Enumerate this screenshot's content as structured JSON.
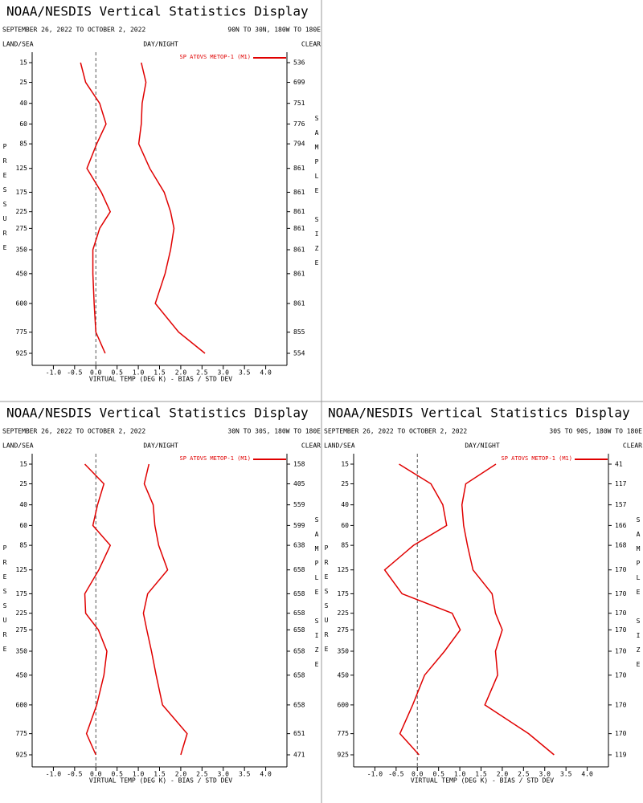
{
  "chart_data": [
    {
      "type": "line",
      "orientation": "vertical",
      "title": "NOAA/NESDIS Vertical Statistics Display",
      "period": "SEPTEMBER 26, 2022 TO OCTOBER 2, 2022",
      "region": "90N TO 30N, 180W TO 180E",
      "header_labels": [
        "LAND/SEA",
        "DAY/NIGHT",
        "CLEAR"
      ],
      "y_label": "PRESSURE",
      "y2_label": "SAMPLE SIZE",
      "x_label": "VIRTUAL TEMP (DEG K) - BIAS / STD DEV",
      "y": [
        15,
        25,
        40,
        60,
        85,
        125,
        175,
        225,
        275,
        350,
        450,
        600,
        775,
        925
      ],
      "sample_size": [
        536,
        699,
        751,
        776,
        794,
        861,
        861,
        861,
        861,
        861,
        861,
        861,
        855,
        554
      ],
      "xlim": [
        -1.5,
        4.5
      ],
      "xticks": [
        {
          "value": -1,
          "label": "-1.0"
        },
        -0.5,
        {
          "value": 0,
          "label": "0.0"
        },
        0.5,
        {
          "value": 1,
          "label": "1.0"
        },
        1.5,
        {
          "value": 2,
          "label": "2.0"
        },
        2.5,
        {
          "value": 3,
          "label": "3.0"
        },
        3.5,
        {
          "value": 4,
          "label": "4.0"
        }
      ],
      "series": [
        {
          "name": "SP ATOVS METOP-1 (M1)",
          "color": "#e00000",
          "values": [
            -0.36,
            -0.24,
            0.09,
            0.24,
            0.02,
            -0.21,
            0.13,
            0.34,
            0.09,
            -0.07,
            -0.07,
            -0.04,
            0.0,
            0.22
          ],
          "std_dev": [
            1.07,
            1.18,
            1.09,
            1.07,
            1.01,
            1.27,
            1.61,
            1.76,
            1.84,
            1.76,
            1.63,
            1.4,
            1.95,
            2.57
          ]
        }
      ]
    },
    {
      "type": "line",
      "orientation": "vertical",
      "title": "NOAA/NESDIS Vertical Statistics Display",
      "period": "SEPTEMBER 26, 2022 TO OCTOBER 2, 2022",
      "region": "30N TO 30S, 180W TO 180E",
      "header_labels": [
        "LAND/SEA",
        "DAY/NIGHT",
        "CLEAR"
      ],
      "y_label": "PRESSURE",
      "y2_label": "SAMPLE SIZE",
      "x_label": "VIRTUAL TEMP (DEG K) - BIAS / STD DEV",
      "y": [
        15,
        25,
        40,
        60,
        85,
        125,
        175,
        225,
        275,
        350,
        450,
        600,
        775,
        925
      ],
      "sample_size": [
        158,
        405,
        559,
        599,
        638,
        658,
        658,
        658,
        658,
        658,
        658,
        658,
        651,
        471
      ],
      "xlim": [
        -1.5,
        4.5
      ],
      "xticks": [
        {
          "value": -1,
          "label": "-1.0"
        },
        -0.5,
        {
          "value": 0,
          "label": "0.0"
        },
        0.5,
        {
          "value": 1,
          "label": "1.0"
        },
        1.5,
        {
          "value": 2,
          "label": "2.0"
        },
        2.5,
        {
          "value": 3,
          "label": "3.0"
        },
        3.5,
        {
          "value": 4,
          "label": "4.0"
        }
      ],
      "series": [
        {
          "name": "SP ATOVS METOP-1 (M1)",
          "color": "#e00000",
          "values": [
            -0.26,
            0.19,
            0.04,
            -0.07,
            0.34,
            0.07,
            -0.26,
            -0.24,
            0.06,
            0.26,
            0.19,
            0.02,
            -0.22,
            0.0
          ],
          "std_dev": [
            1.25,
            1.14,
            1.35,
            1.39,
            1.48,
            1.69,
            1.22,
            1.12,
            1.2,
            1.31,
            1.42,
            1.57,
            2.15,
            2.0
          ]
        }
      ]
    },
    {
      "type": "line",
      "orientation": "vertical",
      "title": "NOAA/NESDIS Vertical Statistics Display",
      "period": "SEPTEMBER 26, 2022 TO OCTOBER 2, 2022",
      "region": "30S TO 90S, 180W TO 180E",
      "header_labels": [
        "LAND/SEA",
        "DAY/NIGHT",
        "CLEAR"
      ],
      "y_label": "PRESSURE",
      "y2_label": "SAMPLE SIZE",
      "x_label": "VIRTUAL TEMP (DEG K) - BIAS / STD DEV",
      "y": [
        15,
        25,
        40,
        60,
        85,
        125,
        175,
        225,
        275,
        350,
        450,
        600,
        775,
        925
      ],
      "sample_size": [
        41,
        117,
        157,
        166,
        168,
        170,
        170,
        170,
        170,
        170,
        170,
        170,
        170,
        119
      ],
      "xlim": [
        -1.5,
        4.5
      ],
      "xticks": [
        {
          "value": -1,
          "label": "-1.0"
        },
        -0.5,
        {
          "value": 0,
          "label": "0.0"
        },
        0.5,
        {
          "value": 1,
          "label": "1.0"
        },
        1.5,
        {
          "value": 2,
          "label": "2.0"
        },
        2.5,
        {
          "value": 3,
          "label": "3.0"
        },
        3.5,
        {
          "value": 4,
          "label": "4.0"
        }
      ],
      "series": [
        {
          "name": "SP ATOVS METOP-1 (M1)",
          "color": "#e00000",
          "values": [
            -0.43,
            0.32,
            0.6,
            0.69,
            -0.09,
            -0.77,
            -0.36,
            0.82,
            1.01,
            0.64,
            0.17,
            -0.11,
            -0.41,
            0.04
          ],
          "std_dev": [
            1.85,
            1.14,
            1.05,
            1.09,
            1.18,
            1.31,
            1.76,
            1.84,
            2.0,
            1.84,
            1.89,
            1.59,
            2.62,
            3.22
          ]
        }
      ]
    }
  ]
}
